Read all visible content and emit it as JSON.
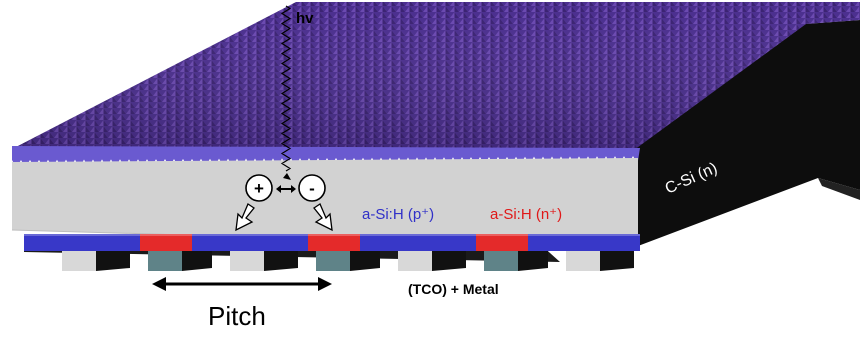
{
  "labels": {
    "photon": "hv",
    "substrate": "C-Si (n)",
    "p_layer": "a-Si:H (p⁺)",
    "n_layer": "a-Si:H (n⁺)",
    "contact": "(TCO) + Metal",
    "pitch": "Pitch",
    "hole_sign": "+",
    "electron_sign": "-"
  },
  "colors": {
    "texture_top": "#5a3aa0",
    "texture_dark": "#3a2470",
    "edge_band": "#6a5ad0",
    "wafer_face": "#d2d2d2",
    "wafer_side": "#0d0d0d",
    "p_strip": "#3838c8",
    "n_strip": "#e42a2a",
    "tco": "#5f8388",
    "pillar_face": "#d8d8d8",
    "pillar_side": "#111111"
  },
  "icons": [
    "wavy-photon-icon",
    "hole-circle-icon",
    "electron-circle-icon",
    "double-arrow-icon",
    "down-arrow-icon"
  ]
}
